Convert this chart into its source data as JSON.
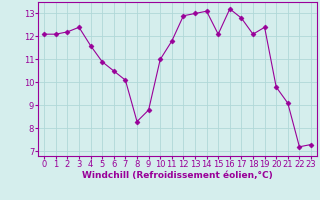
{
  "x": [
    0,
    1,
    2,
    3,
    4,
    5,
    6,
    7,
    8,
    9,
    10,
    11,
    12,
    13,
    14,
    15,
    16,
    17,
    18,
    19,
    20,
    21,
    22,
    23
  ],
  "y": [
    12.1,
    12.1,
    12.2,
    12.4,
    11.6,
    10.9,
    10.5,
    10.1,
    8.3,
    8.8,
    11.0,
    11.8,
    12.9,
    13.0,
    13.1,
    12.1,
    13.2,
    12.8,
    12.1,
    12.4,
    9.8,
    9.1,
    7.2,
    7.3
  ],
  "line_color": "#990099",
  "marker": "D",
  "marker_size": 2.5,
  "bg_color": "#d5eeed",
  "grid_color": "#b0d8d8",
  "xlabel": "Windchill (Refroidissement éolien,°C)",
  "xlabel_color": "#990099",
  "xlabel_fontsize": 6.5,
  "tick_fontsize": 6,
  "tick_color": "#990099",
  "ylim": [
    6.8,
    13.5
  ],
  "yticks": [
    7,
    8,
    9,
    10,
    11,
    12,
    13
  ],
  "xlim": [
    -0.5,
    23.5
  ],
  "xticks": [
    0,
    1,
    2,
    3,
    4,
    5,
    6,
    7,
    8,
    9,
    10,
    11,
    12,
    13,
    14,
    15,
    16,
    17,
    18,
    19,
    20,
    21,
    22,
    23
  ]
}
